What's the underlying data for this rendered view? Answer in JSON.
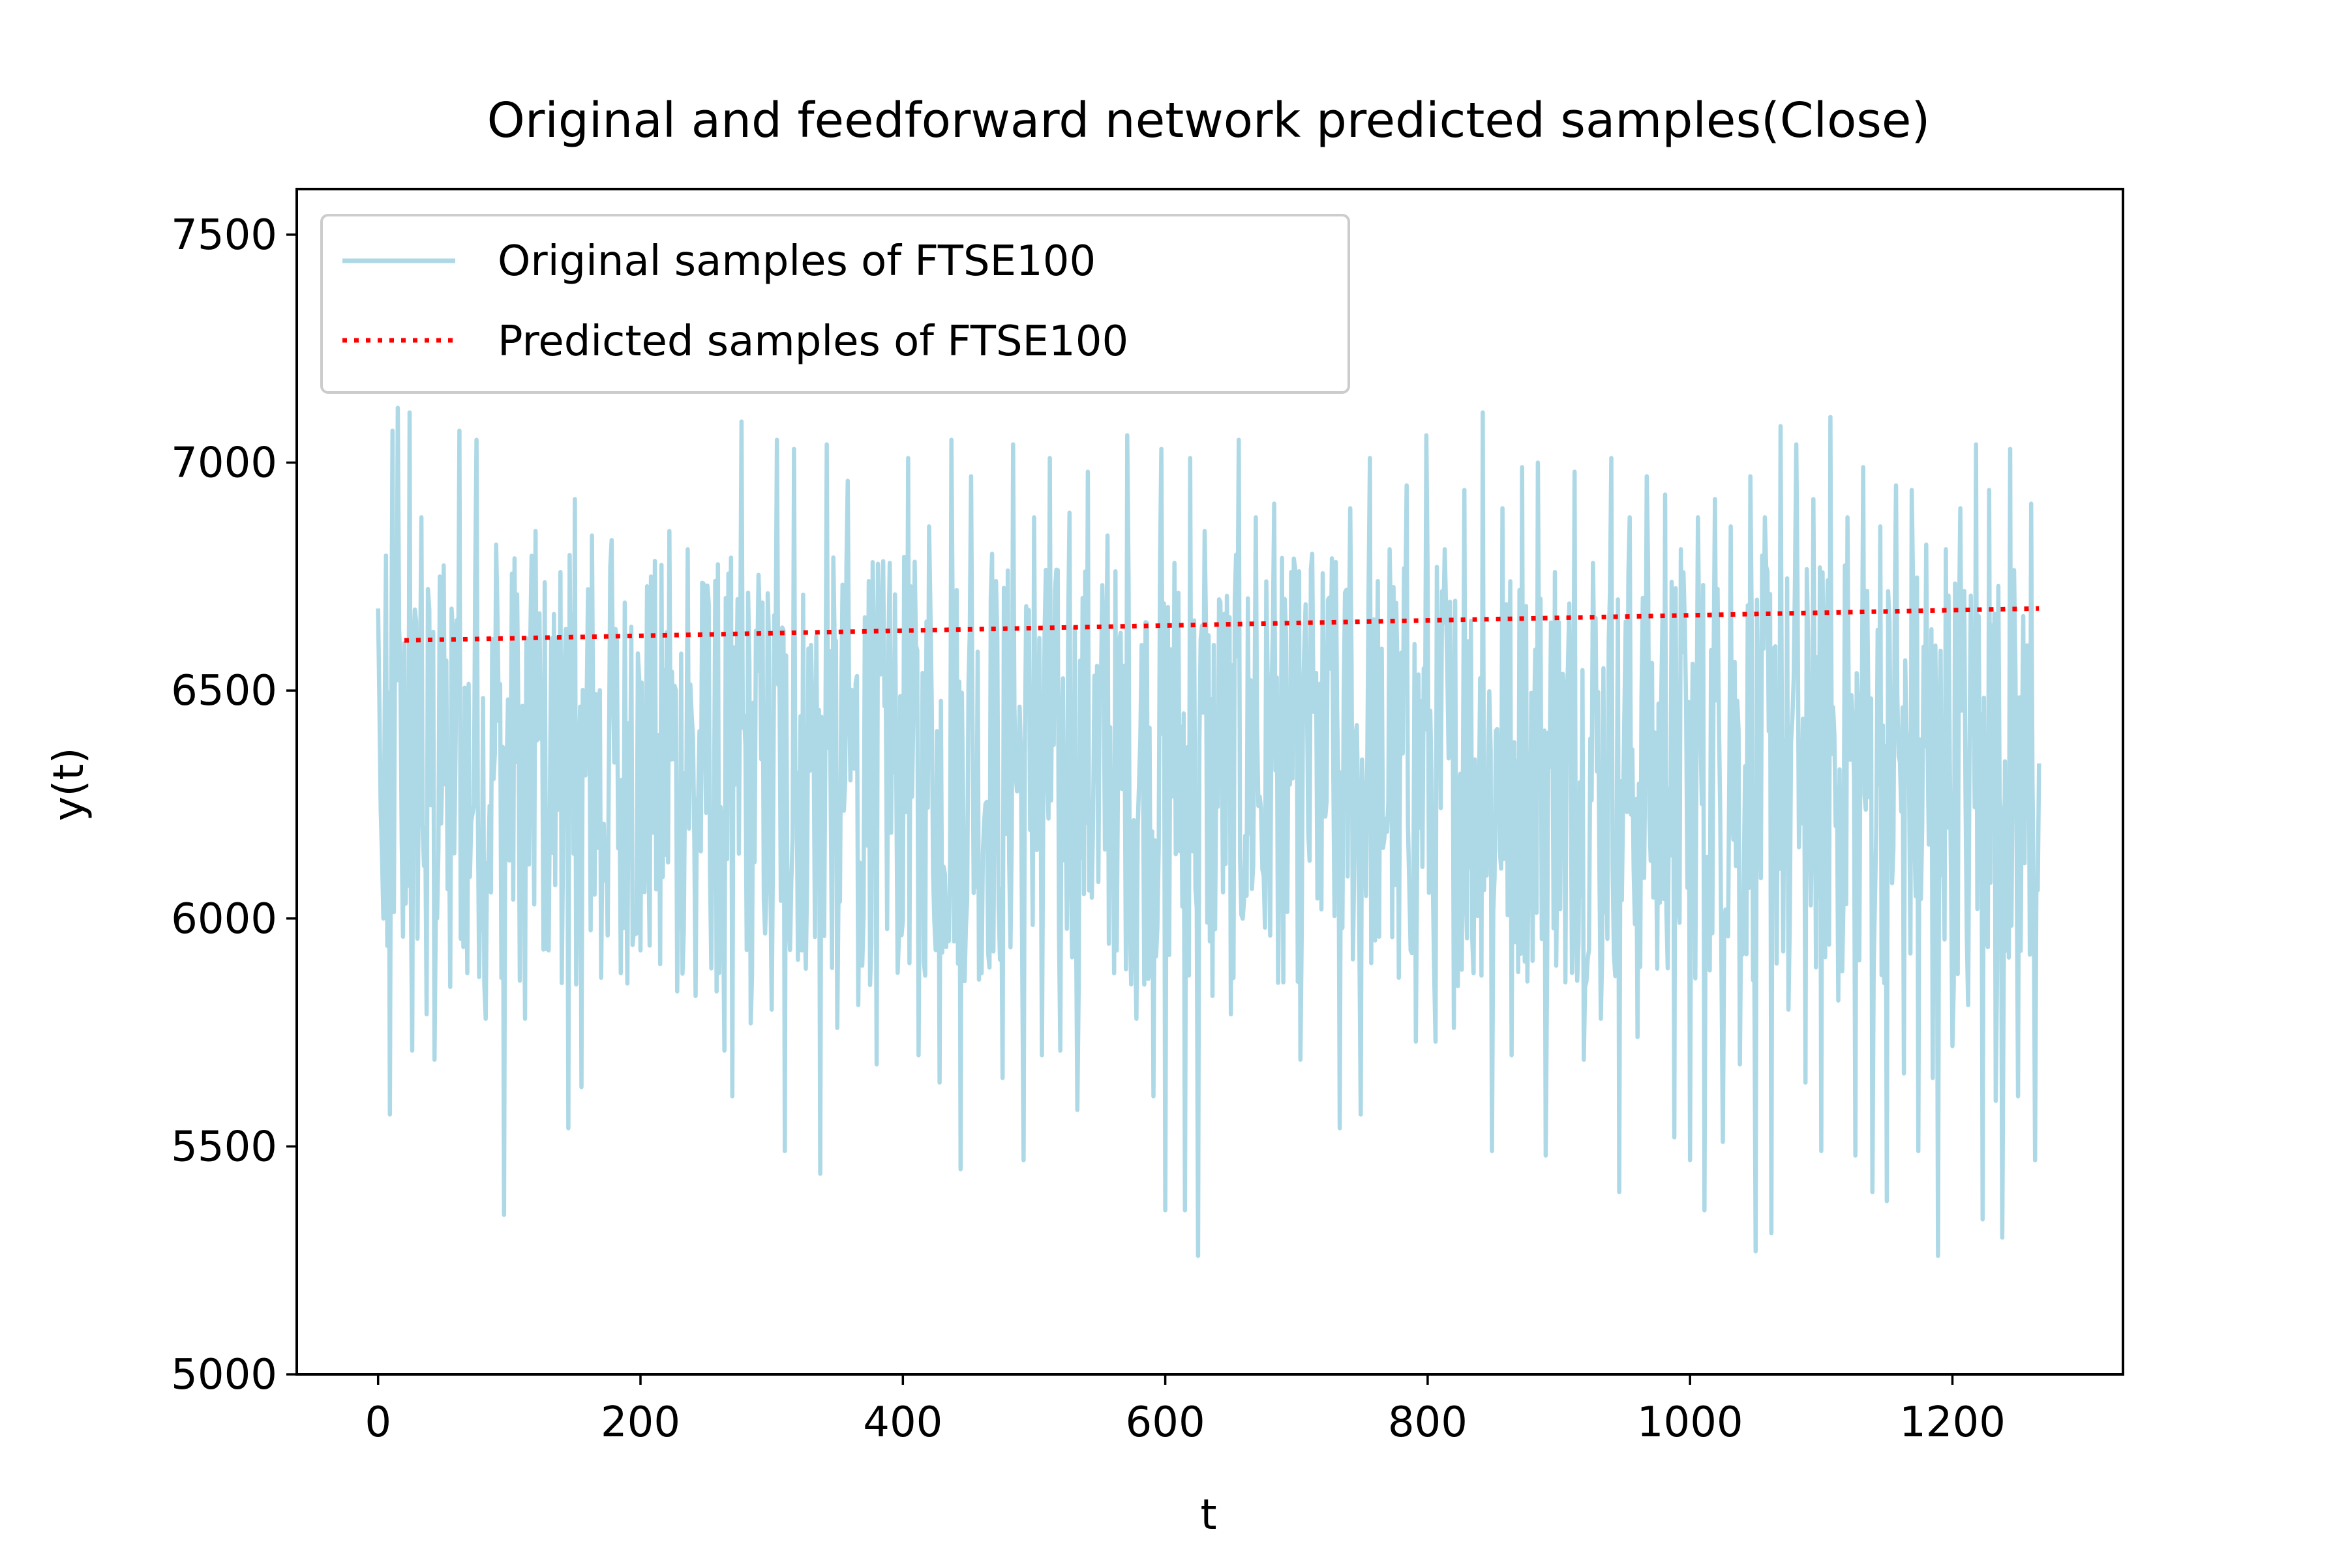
{
  "chart_data": {
    "type": "line",
    "title": "Original and feedforward network predicted samples(Close)",
    "xlabel": "t",
    "ylabel": "y(t)",
    "xlim": [
      -62,
      1330
    ],
    "ylim": [
      5000,
      7600
    ],
    "xticks": [
      0,
      200,
      400,
      600,
      800,
      1000,
      1200
    ],
    "yticks": [
      5000,
      5500,
      6000,
      6500,
      7000,
      7500
    ],
    "grid": false,
    "legend_position": "upper left",
    "series": [
      {
        "name": "Original samples of FTSE100",
        "color": "#add8e6",
        "style": "solid",
        "x_range": [
          0,
          1266
        ],
        "point_count": 1267,
        "mean": 6300,
        "min": 5260,
        "max": 7120,
        "note_values": "dense oscillating series; key sampled extremes listed below",
        "samples": [
          [
            0,
            6680
          ],
          [
            2,
            6240
          ],
          [
            4,
            6000
          ],
          [
            7,
            5940
          ],
          [
            9,
            5570
          ],
          [
            11,
            7070
          ],
          [
            15,
            7120
          ],
          [
            19,
            5960
          ],
          [
            24,
            7110
          ],
          [
            26,
            5710
          ],
          [
            33,
            6880
          ],
          [
            37,
            5790
          ],
          [
            43,
            5690
          ],
          [
            47,
            6750
          ],
          [
            55,
            5850
          ],
          [
            62,
            7070
          ],
          [
            68,
            5880
          ],
          [
            75,
            7050
          ],
          [
            82,
            5780
          ],
          [
            90,
            6820
          ],
          [
            96,
            5350
          ],
          [
            104,
            6790
          ],
          [
            112,
            5780
          ],
          [
            120,
            6850
          ],
          [
            130,
            5930
          ],
          [
            139,
            6760
          ],
          [
            145,
            5540
          ],
          [
            150,
            6920
          ],
          [
            155,
            5630
          ],
          [
            163,
            6840
          ],
          [
            170,
            5870
          ],
          [
            178,
            6830
          ],
          [
            185,
            5880
          ],
          [
            193,
            6640
          ],
          [
            200,
            5930
          ],
          [
            208,
            6750
          ],
          [
            215,
            5900
          ],
          [
            222,
            6850
          ],
          [
            228,
            5840
          ],
          [
            236,
            6810
          ],
          [
            242,
            5830
          ],
          [
            251,
            6730
          ],
          [
            258,
            5840
          ],
          [
            264,
            5710
          ],
          [
            270,
            5610
          ],
          [
            277,
            7090
          ],
          [
            284,
            5770
          ],
          [
            291,
            6640
          ],
          [
            300,
            5800
          ],
          [
            304,
            7050
          ],
          [
            310,
            5490
          ],
          [
            317,
            7030
          ],
          [
            323,
            5930
          ],
          [
            330,
            6600
          ],
          [
            337,
            5440
          ],
          [
            342,
            7040
          ],
          [
            350,
            5760
          ],
          [
            358,
            6960
          ],
          [
            366,
            5810
          ],
          [
            374,
            6740
          ],
          [
            380,
            5680
          ],
          [
            390,
            6780
          ],
          [
            397,
            5960
          ],
          [
            404,
            7010
          ],
          [
            412,
            5700
          ],
          [
            420,
            6860
          ],
          [
            428,
            5640
          ],
          [
            437,
            7050
          ],
          [
            444,
            5450
          ],
          [
            452,
            6970
          ],
          [
            460,
            5880
          ],
          [
            468,
            6800
          ],
          [
            476,
            5650
          ],
          [
            484,
            7040
          ],
          [
            492,
            5470
          ],
          [
            500,
            6880
          ],
          [
            506,
            5700
          ],
          [
            512,
            7010
          ],
          [
            520,
            5710
          ],
          [
            527,
            6890
          ],
          [
            533,
            5580
          ],
          [
            541,
            6980
          ],
          [
            549,
            6080
          ],
          [
            556,
            6840
          ],
          [
            563,
            5930
          ],
          [
            571,
            7060
          ],
          [
            578,
            5780
          ],
          [
            585,
            6650
          ],
          [
            591,
            5610
          ],
          [
            597,
            7030
          ],
          [
            600,
            5360
          ],
          [
            607,
            6780
          ],
          [
            615,
            5360
          ],
          [
            619,
            7010
          ],
          [
            625,
            5260
          ],
          [
            630,
            6850
          ],
          [
            636,
            5830
          ],
          [
            641,
            6700
          ],
          [
            650,
            5790
          ],
          [
            656,
            7050
          ],
          [
            662,
            6050
          ],
          [
            669,
            6880
          ],
          [
            676,
            5980
          ],
          [
            683,
            6910
          ],
          [
            690,
            5860
          ],
          [
            696,
            6760
          ],
          [
            703,
            5690
          ],
          [
            712,
            6800
          ],
          [
            719,
            6020
          ],
          [
            727,
            6790
          ],
          [
            733,
            5540
          ],
          [
            741,
            6900
          ],
          [
            749,
            5570
          ],
          [
            756,
            7010
          ],
          [
            763,
            5960
          ],
          [
            771,
            6810
          ],
          [
            778,
            5870
          ],
          [
            784,
            6950
          ],
          [
            791,
            5730
          ],
          [
            799,
            7060
          ],
          [
            806,
            5730
          ],
          [
            813,
            6810
          ],
          [
            820,
            5760
          ],
          [
            828,
            6940
          ],
          [
            835,
            5880
          ],
          [
            842,
            7110
          ],
          [
            849,
            5490
          ],
          [
            857,
            6900
          ],
          [
            864,
            5700
          ],
          [
            872,
            6990
          ],
          [
            878,
            6110
          ],
          [
            884,
            7000
          ],
          [
            890,
            5480
          ],
          [
            897,
            6760
          ],
          [
            905,
            5860
          ],
          [
            912,
            6980
          ],
          [
            919,
            5690
          ],
          [
            926,
            6780
          ],
          [
            932,
            5780
          ],
          [
            940,
            7010
          ],
          [
            946,
            5400
          ],
          [
            954,
            6880
          ],
          [
            960,
            5740
          ],
          [
            967,
            6970
          ],
          [
            975,
            5890
          ],
          [
            981,
            6930
          ],
          [
            988,
            5520
          ],
          [
            993,
            6810
          ],
          [
            1000,
            5470
          ],
          [
            1006,
            6880
          ],
          [
            1011,
            5360
          ],
          [
            1019,
            6920
          ],
          [
            1025,
            5510
          ],
          [
            1031,
            6860
          ],
          [
            1038,
            5680
          ],
          [
            1046,
            6970
          ],
          [
            1050,
            5270
          ],
          [
            1057,
            6880
          ],
          [
            1062,
            5310
          ],
          [
            1069,
            7080
          ],
          [
            1075,
            5800
          ],
          [
            1081,
            7040
          ],
          [
            1088,
            5640
          ],
          [
            1094,
            6920
          ],
          [
            1100,
            5490
          ],
          [
            1107,
            7100
          ],
          [
            1113,
            5820
          ],
          [
            1120,
            6880
          ],
          [
            1126,
            5480
          ],
          [
            1132,
            6990
          ],
          [
            1139,
            5400
          ],
          [
            1145,
            6860
          ],
          [
            1150,
            5380
          ],
          [
            1157,
            6950
          ],
          [
            1163,
            5660
          ],
          [
            1169,
            6940
          ],
          [
            1174,
            5490
          ],
          [
            1180,
            6820
          ],
          [
            1185,
            5650
          ],
          [
            1189,
            5260
          ],
          [
            1195,
            6810
          ],
          [
            1200,
            5720
          ],
          [
            1206,
            6900
          ],
          [
            1212,
            5810
          ],
          [
            1218,
            7040
          ],
          [
            1223,
            5340
          ],
          [
            1228,
            6940
          ],
          [
            1233,
            5600
          ],
          [
            1238,
            5300
          ],
          [
            1244,
            7030
          ],
          [
            1250,
            5610
          ],
          [
            1256,
            6520
          ],
          [
            1260,
            6910
          ],
          [
            1263,
            5470
          ],
          [
            1266,
            6340
          ]
        ]
      },
      {
        "name": "Predicted samples of FTSE100",
        "color": "#ff0000",
        "style": "dotted",
        "x": [
          20,
          1266
        ],
        "y": [
          6610,
          6680
        ]
      }
    ]
  }
}
